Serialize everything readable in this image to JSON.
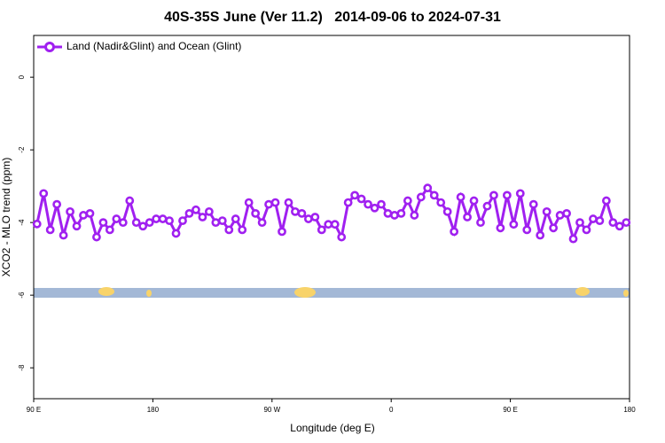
{
  "chart_data": {
    "type": "line",
    "title": "40S-35S June (Ver 11.2)   2014-09-06 to 2024-07-31",
    "xlabel": "Longitude (deg E)",
    "ylabel": "XCO2 - MLO trend (ppm)",
    "xlim": [
      90,
      540
    ],
    "ylim": [
      -8.85,
      1.15
    ],
    "xticks": [
      {
        "value": 90,
        "label": "90 E"
      },
      180,
      {
        "value": 270,
        "label": "90 W"
      },
      {
        "value": 360,
        "label": "0"
      },
      {
        "value": 450,
        "label": "90 E"
      },
      {
        "value": 540,
        "label": "180"
      }
    ],
    "yticks": [
      0,
      -2,
      -4,
      -6,
      -8
    ],
    "legend": "top-left",
    "x": [
      92.5,
      97.5,
      102.5,
      107.5,
      112.5,
      117.5,
      122.5,
      127.5,
      132.5,
      137.5,
      142.5,
      147.5,
      152.5,
      157.5,
      162.5,
      167.5,
      172.5,
      177.5,
      182.5,
      187.5,
      192.5,
      197.5,
      202.5,
      207.5,
      212.5,
      217.5,
      222.5,
      227.5,
      232.5,
      237.5,
      242.5,
      247.5,
      252.5,
      257.5,
      262.5,
      267.5,
      272.5,
      277.5,
      282.5,
      287.5,
      292.5,
      297.5,
      302.5,
      307.5,
      312.5,
      317.5,
      322.5,
      327.5,
      332.5,
      337.5,
      342.5,
      347.5,
      352.5,
      357.5,
      362.5,
      367.5,
      372.5,
      377.5,
      382.5,
      387.5,
      392.5,
      397.5,
      402.5,
      407.5,
      412.5,
      417.5,
      422.5,
      427.5,
      432.5,
      437.5,
      442.5,
      447.5,
      452.5,
      457.5,
      462.5,
      467.5,
      472.5,
      477.5,
      482.5,
      487.5,
      492.5,
      497.5,
      502.5,
      507.5,
      512.5,
      517.5,
      522.5,
      527.5,
      532.5,
      537.5
    ],
    "series": [
      {
        "name": "Land (Nadir&Glint) and Ocean (Glint)",
        "color": "#a020f0",
        "values": [
          -4.04,
          -3.2,
          -4.2,
          -3.5,
          -4.35,
          -3.7,
          -4.1,
          -3.8,
          -3.75,
          -4.4,
          -4.0,
          -4.2,
          -3.9,
          -4.0,
          -3.4,
          -4.0,
          -4.1,
          -4.0,
          -3.9,
          -3.9,
          -3.95,
          -4.3,
          -3.95,
          -3.75,
          -3.65,
          -3.85,
          -3.7,
          -4.0,
          -3.95,
          -4.2,
          -3.9,
          -4.2,
          -3.45,
          -3.75,
          -4.0,
          -3.5,
          -3.45,
          -4.25,
          -3.45,
          -3.7,
          -3.75,
          -3.9,
          -3.85,
          -4.2,
          -4.05,
          -4.05,
          -4.4,
          -3.45,
          -3.25,
          -3.35,
          -3.5,
          -3.6,
          -3.5,
          -3.75,
          -3.8,
          -3.75,
          -3.4,
          -3.8,
          -3.3,
          -3.05,
          -3.25,
          -3.45,
          -3.7,
          -4.25,
          -3.3,
          -3.85,
          -3.4,
          -4.0,
          -3.55,
          -3.25,
          -4.15,
          -3.25,
          -4.05,
          -3.2,
          -4.2,
          -3.5,
          -4.35,
          -3.7,
          -4.15,
          -3.8,
          -3.75,
          -4.45,
          -4.0,
          -4.2,
          -3.9,
          -3.95,
          -3.4,
          -4.0,
          -4.1,
          -4.0
        ]
      }
    ]
  }
}
